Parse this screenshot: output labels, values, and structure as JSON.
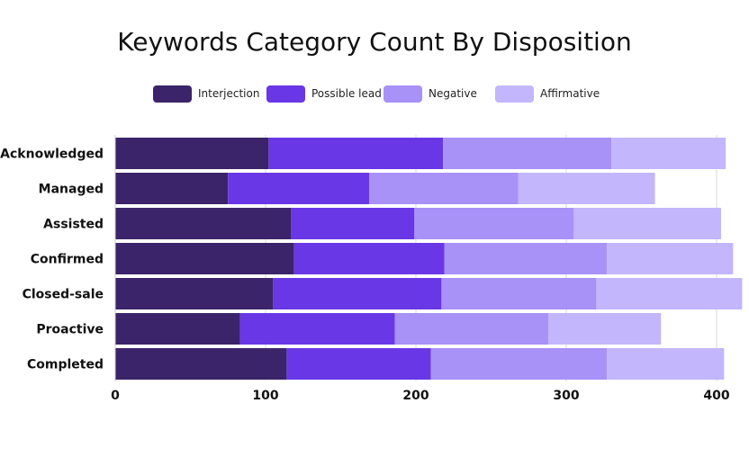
{
  "chart_data": {
    "type": "bar",
    "orientation": "horizontal",
    "stacked": true,
    "title": "Keywords Category Count By Disposition",
    "categories": [
      "Acknowledged",
      "Managed",
      "Assisted",
      "Confirmed",
      "Closed-sale",
      "Proactive",
      "Completed"
    ],
    "series": [
      {
        "name": "Interjection",
        "color": "#3b2469",
        "values": [
          102,
          75,
          117,
          119,
          105,
          83,
          114
        ]
      },
      {
        "name": "Possible lead",
        "color": "#6937e6",
        "values": [
          116,
          94,
          82,
          100,
          112,
          103,
          96
        ]
      },
      {
        "name": "Negative",
        "color": "#a891f7",
        "values": [
          112,
          99,
          106,
          108,
          103,
          102,
          117
        ]
      },
      {
        "name": "Affirmative",
        "color": "#c3b6fd",
        "values": [
          76,
          91,
          98,
          84,
          97,
          75,
          78
        ]
      }
    ],
    "xlim": [
      0,
      420
    ],
    "xticks": [
      0,
      100,
      200,
      300,
      400
    ],
    "grid": "vertical",
    "legend_position": "top"
  }
}
